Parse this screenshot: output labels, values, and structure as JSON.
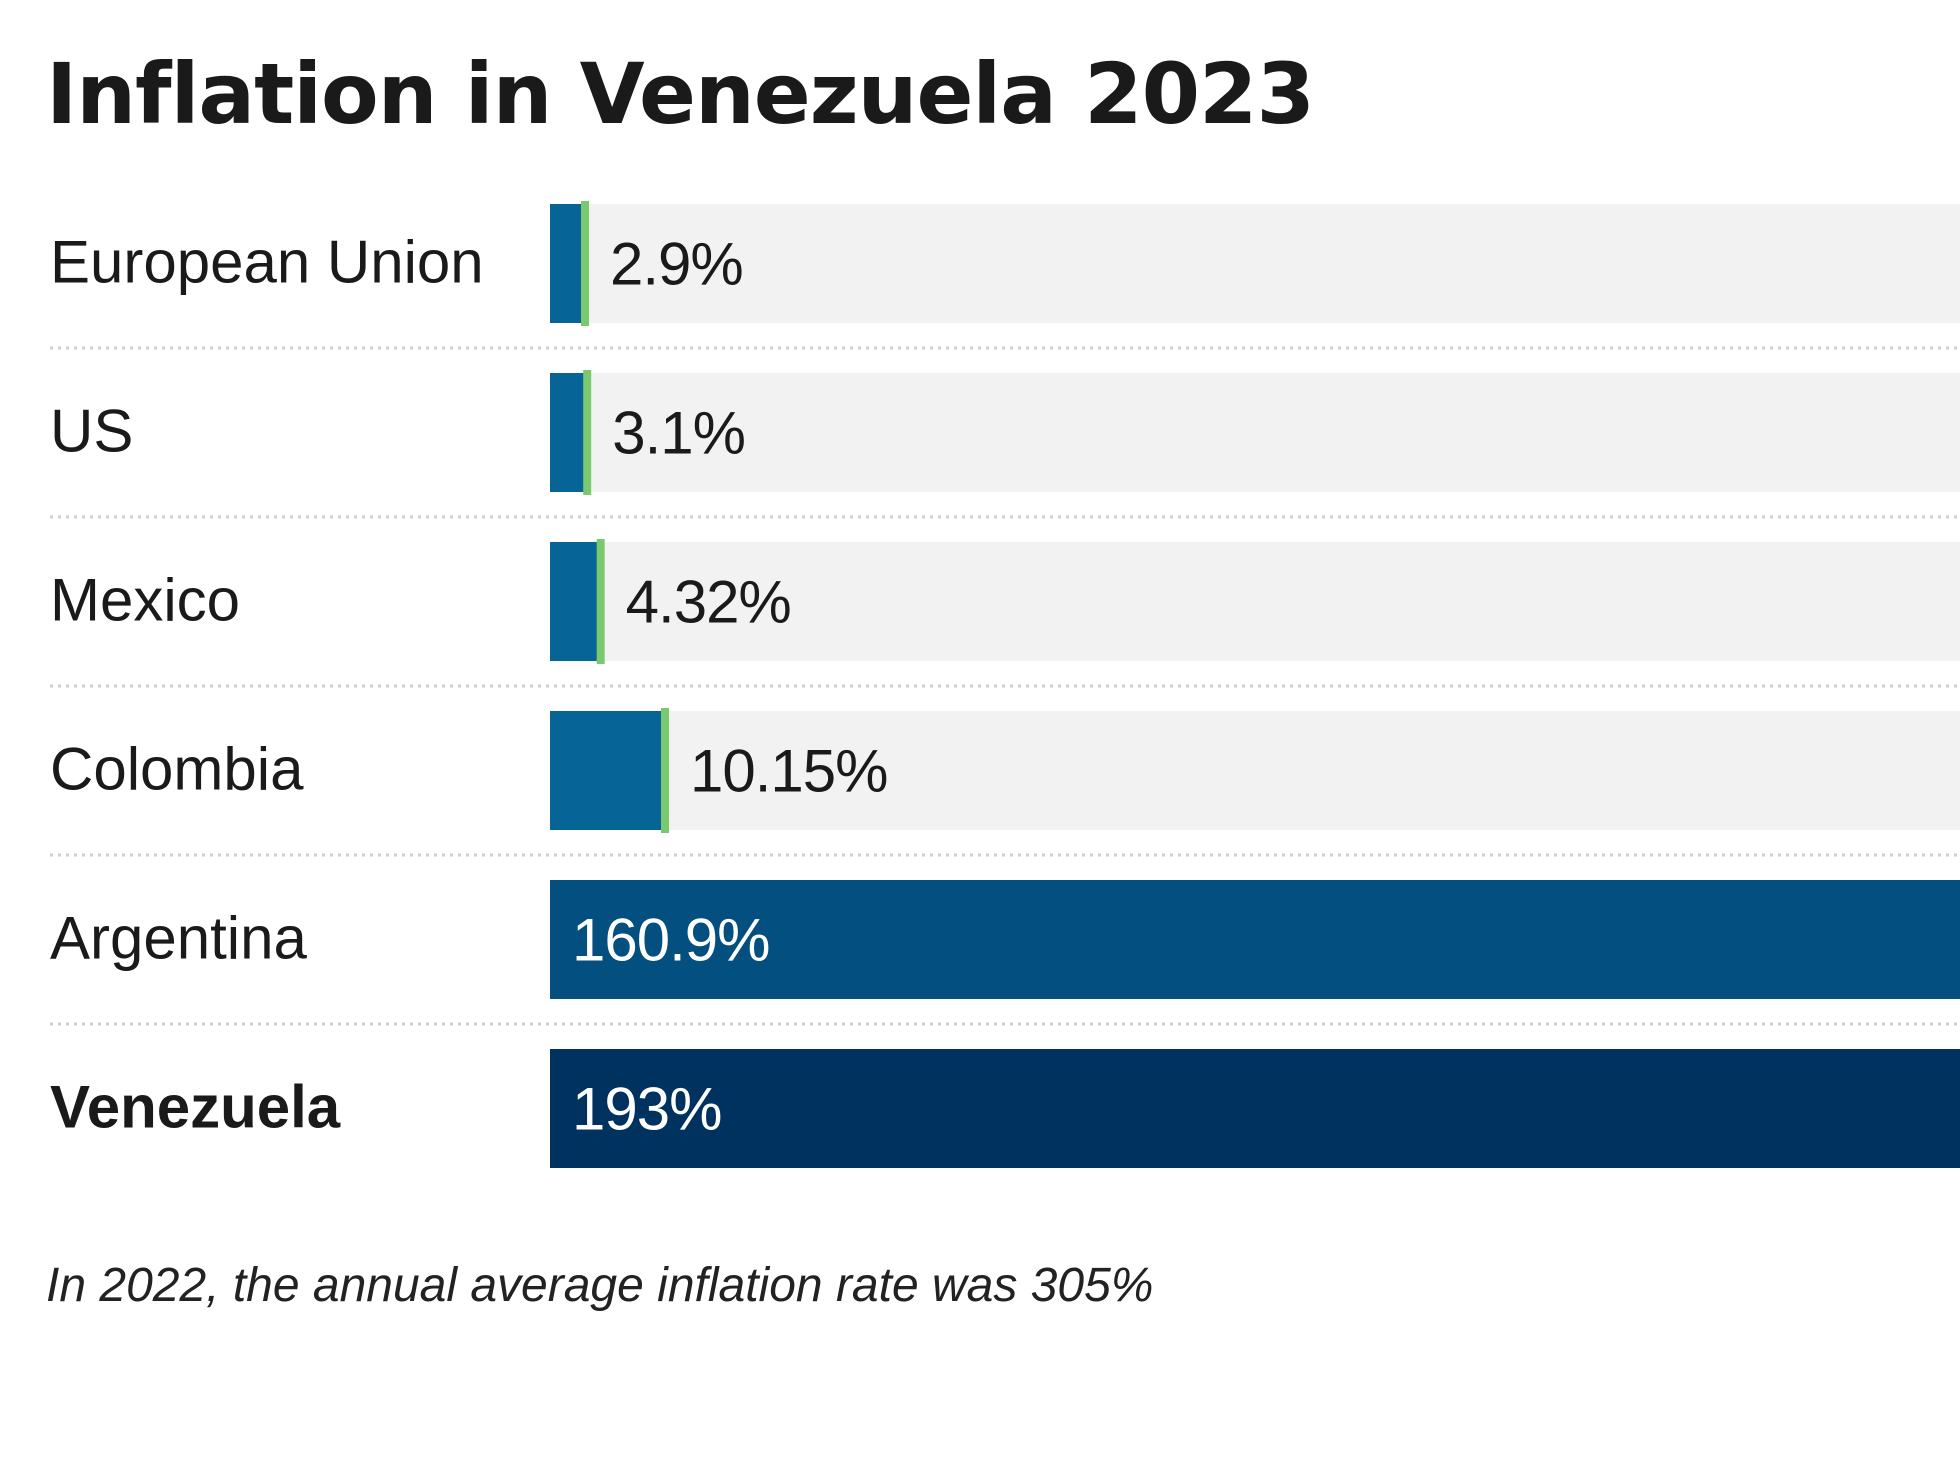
{
  "title": "Inflation in Venezuela 2023",
  "caption": "In 2022, the annual average inflation rate was 305%",
  "colors": {
    "bar_small": "#066596",
    "bar_argentina": "#034f7f",
    "bar_highlight": "#003260",
    "bar_track": "#f2f2f2",
    "marker": "#7bc96f",
    "label_dark": "#1a1a1a",
    "label_light": "#ffffff",
    "divider": "#cfcfcf"
  },
  "chart_data": {
    "type": "bar",
    "orientation": "horizontal",
    "title": "Inflation in Venezuela 2023",
    "xlabel": "",
    "ylabel": "",
    "unit": "%",
    "xlim": [
      0,
      193
    ],
    "grid": false,
    "categories": [
      "European Union",
      "US",
      "Mexico",
      "Colombia",
      "Argentina",
      "Venezuela"
    ],
    "values": [
      2.9,
      3.1,
      4.32,
      10.15,
      160.9,
      193
    ],
    "labels": [
      "2.9%",
      "3.1%",
      "4.32%",
      "10.15%",
      "160.9%",
      "193%"
    ],
    "highlight": "Venezuela"
  }
}
